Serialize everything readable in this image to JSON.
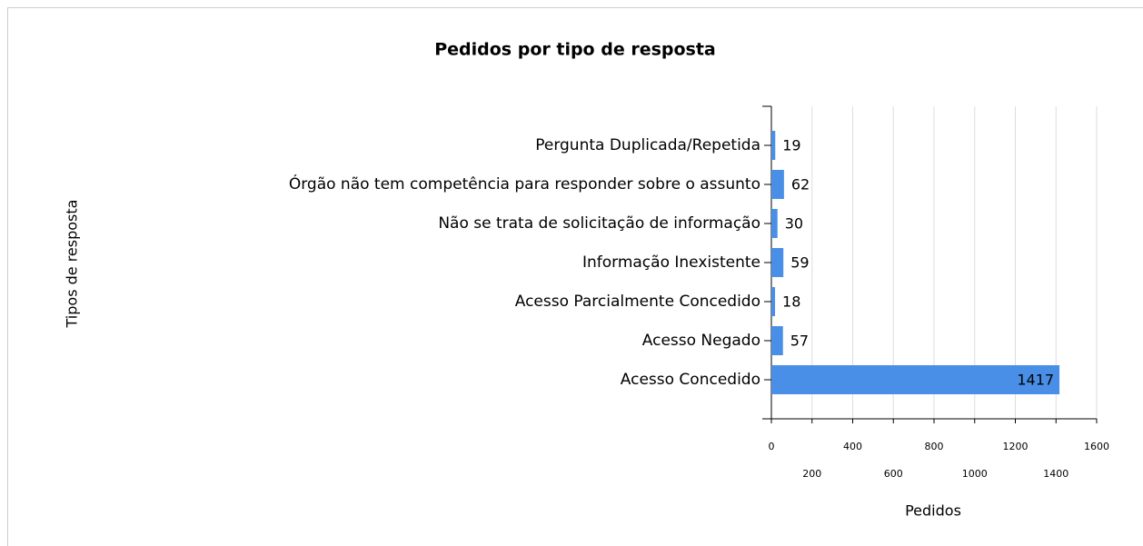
{
  "chart_data": {
    "type": "bar",
    "orientation": "horizontal",
    "title": "Pedidos por tipo de resposta",
    "x_label": "Pedidos",
    "y_label": "Tipos de resposta",
    "categories": [
      "Pergunta Duplicada/Repetida",
      "Órgão não tem competência para responder sobre o assunto",
      "Não se trata de solicitação de informação",
      "Informação Inexistente",
      "Acesso Parcialmente Concedido",
      "Acesso Negado",
      "Acesso Concedido"
    ],
    "values": [
      19,
      62,
      30,
      59,
      18,
      57,
      1417
    ],
    "color": "#4a8fe7",
    "xlim": [
      0,
      1600
    ],
    "xticks": [
      0,
      200,
      400,
      600,
      800,
      1000,
      1200,
      1400,
      1600
    ],
    "grid": true
  }
}
